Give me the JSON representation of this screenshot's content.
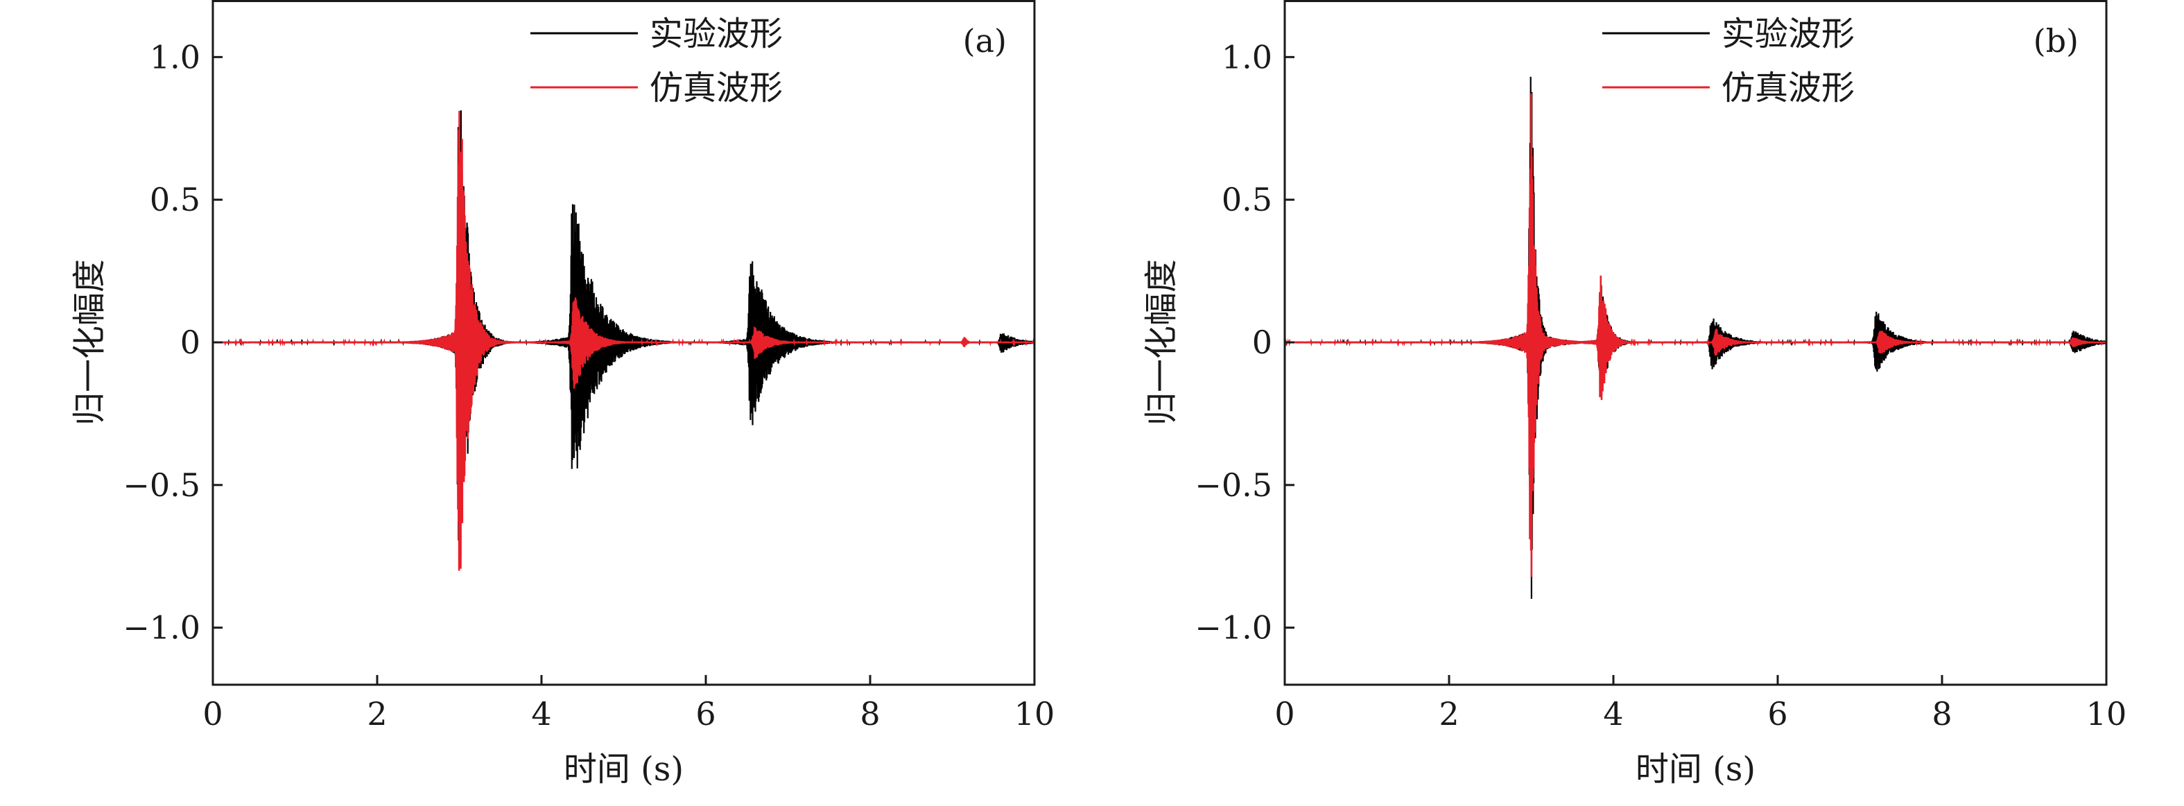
{
  "chart_data": [
    {
      "type": "line",
      "panel_label": "(a)",
      "xlabel": "时间 (s)",
      "ylabel": "归一化幅度",
      "xlim": [
        0,
        10
      ],
      "ylim": [
        -1.2,
        1.2
      ],
      "x_ticks": [
        0,
        2,
        4,
        6,
        8,
        10
      ],
      "y_ticks": [
        1.0,
        0.5,
        0,
        -0.5,
        -1.0
      ],
      "x_tick_labels": [
        "0",
        "2",
        "4",
        "6",
        "8",
        "10"
      ],
      "y_tick_labels": [
        "1.0",
        "0.5",
        "0",
        "−0.5",
        "−1.0"
      ],
      "grid": false,
      "legend_position": "top-center",
      "series": [
        {
          "name": "实验波形",
          "color": "#000000",
          "bursts": [
            {
              "t": 3.0,
              "amp": 0.98,
              "dur": 0.25
            },
            {
              "t": 4.38,
              "amp": 0.56,
              "dur": 0.55
            },
            {
              "t": 6.55,
              "amp": 0.33,
              "dur": 0.5
            },
            {
              "t": 9.6,
              "amp": 0.04,
              "dur": 0.4
            }
          ]
        },
        {
          "name": "仿真波形",
          "color": "#e8202a",
          "bursts": [
            {
              "t": 3.0,
              "amp": 1.0,
              "dur": 0.22
            },
            {
              "t": 4.4,
              "amp": 0.18,
              "dur": 0.35
            },
            {
              "t": 6.6,
              "amp": 0.06,
              "dur": 0.35
            },
            {
              "t": 9.15,
              "amp": 0.02,
              "dur": 0.08
            }
          ]
        }
      ]
    },
    {
      "type": "line",
      "panel_label": "(b)",
      "xlabel": "时间 (s)",
      "ylabel": "归一化幅度",
      "xlim": [
        0,
        10
      ],
      "ylim": [
        -1.2,
        1.2
      ],
      "x_ticks": [
        0,
        2,
        4,
        6,
        8,
        10
      ],
      "y_ticks": [
        1.0,
        0.5,
        0,
        -0.5,
        -1.0
      ],
      "x_tick_labels": [
        "0",
        "2",
        "4",
        "6",
        "8",
        "10"
      ],
      "y_tick_labels": [
        "1.0",
        "0.5",
        "0",
        "−0.5",
        "−1.0"
      ],
      "grid": false,
      "legend_position": "top-center",
      "series": [
        {
          "name": "实验波形",
          "color": "#000000",
          "bursts": [
            {
              "t": 3.0,
              "amp": 1.0,
              "dur": 0.12
            },
            {
              "t": 3.85,
              "amp": 0.22,
              "dur": 0.2
            },
            {
              "t": 5.2,
              "amp": 0.1,
              "dur": 0.4
            },
            {
              "t": 7.2,
              "amp": 0.12,
              "dur": 0.4
            },
            {
              "t": 9.6,
              "amp": 0.05,
              "dur": 0.4
            }
          ]
        },
        {
          "name": "仿真波形",
          "color": "#e8202a",
          "bursts": [
            {
              "t": 3.0,
              "amp": 1.0,
              "dur": 0.1
            },
            {
              "t": 3.85,
              "amp": 0.24,
              "dur": 0.18
            },
            {
              "t": 5.25,
              "amp": 0.05,
              "dur": 0.3
            },
            {
              "t": 7.25,
              "amp": 0.05,
              "dur": 0.3
            },
            {
              "t": 9.6,
              "amp": 0.02,
              "dur": 0.25
            }
          ]
        }
      ]
    }
  ]
}
